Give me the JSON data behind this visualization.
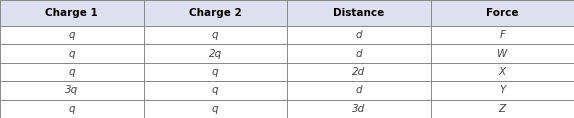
{
  "headers": [
    "Charge 1",
    "Charge 2",
    "Distance",
    "Force"
  ],
  "rows": [
    [
      "q",
      "q",
      "d",
      "F"
    ],
    [
      "q",
      "2q",
      "d",
      "W"
    ],
    [
      "q",
      "q",
      "2d",
      "X"
    ],
    [
      "3q",
      "q",
      "d",
      "Y"
    ],
    [
      "q",
      "q",
      "3d",
      "Z"
    ]
  ],
  "header_bg": "#dde0ef",
  "row_bg": "#ffffff",
  "border_color": "#888888",
  "header_font_color": "#000000",
  "row_font_color": "#444444",
  "header_fontsize": 7.5,
  "row_fontsize": 7.5,
  "fig_width": 5.74,
  "fig_height": 1.18,
  "dpi": 100
}
